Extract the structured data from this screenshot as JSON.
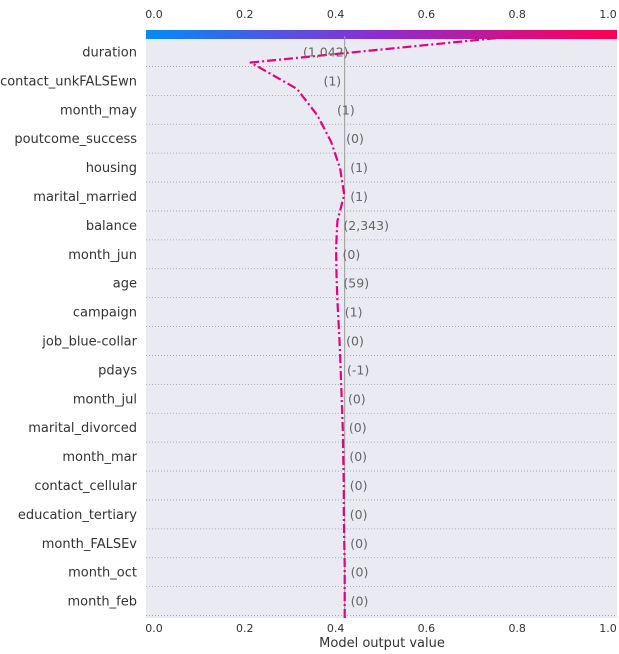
{
  "chart_data": {
    "type": "line",
    "title": "",
    "xlabel": "Model output value",
    "ylabel": "",
    "xlim": [
      0,
      1
    ],
    "x_ticks": [
      "0.0",
      "0.2",
      "0.4",
      "0.6",
      "0.8",
      "1.0"
    ],
    "base_value": 0.42,
    "grid": true,
    "features": [
      "duration",
      "contact_unkFALSEwn",
      "month_may",
      "poutcome_success",
      "housing",
      "marital_married",
      "balance",
      "month_jun",
      "age",
      "campaign",
      "job_blue-collar",
      "pdays",
      "month_jul",
      "marital_divorced",
      "month_mar",
      "contact_cellular",
      "education_tertiary",
      "month_FALSEv",
      "month_oct",
      "month_feb"
    ],
    "feature_values": [
      "(1,042)",
      "(1)",
      "(1)",
      "(0)",
      "(1)",
      "(1)",
      "(2,343)",
      "(0)",
      "(59)",
      "(1)",
      "(0)",
      "(-1)",
      "(0)",
      "(0)",
      "(0)",
      "(0)",
      "(0)",
      "(0)",
      "(0)",
      "(0)"
    ],
    "path_x": [
      0.42,
      0.42,
      0.42,
      0.419,
      0.418,
      0.418,
      0.417,
      0.416,
      0.414,
      0.412,
      0.41,
      0.407,
      0.404,
      0.402,
      0.401,
      0.404,
      0.419,
      0.41,
      0.39,
      0.36,
      0.315,
      0.213,
      0.8
    ],
    "colors": {
      "low": "#008bfb",
      "mid": "#8f2bd2",
      "high": "#ff0051",
      "line": "#e5007f",
      "band": "#eaeaf2",
      "grid": "#9a9ab4",
      "base": "#999999"
    }
  }
}
